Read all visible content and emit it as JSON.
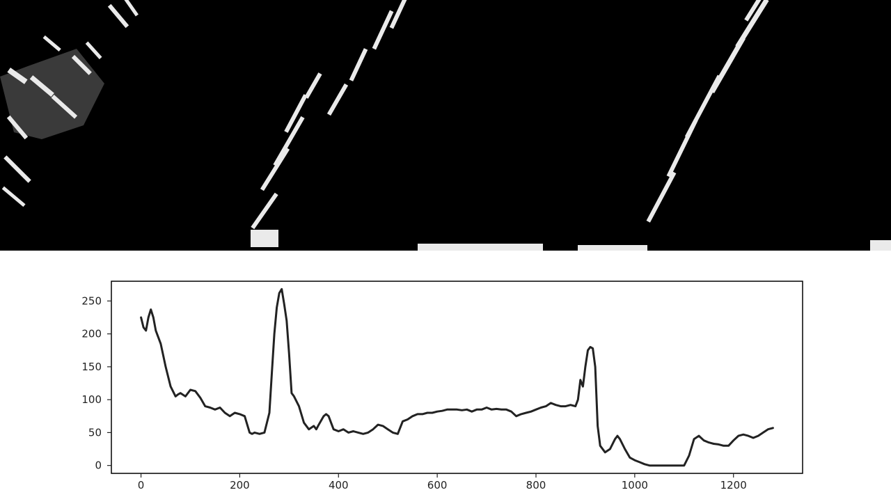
{
  "chart_data": {
    "type": "line",
    "title": "",
    "xlabel": "",
    "ylabel": "",
    "xlim": [
      -60,
      1340
    ],
    "ylim": [
      -12,
      280
    ],
    "xticks": [
      0,
      200,
      400,
      600,
      800,
      1000,
      1200
    ],
    "yticks": [
      0,
      50,
      100,
      150,
      200,
      250
    ],
    "grid": false,
    "legend": "none",
    "colors": {
      "line": "#222222",
      "frame": "#000000",
      "ticks": "#222222"
    },
    "series": [
      {
        "x": [
          0,
          5,
          10,
          15,
          20,
          25,
          30,
          40,
          50,
          60,
          70,
          75,
          80,
          90,
          100,
          110,
          120,
          130,
          140,
          150,
          160,
          170,
          180,
          190,
          200,
          210,
          220,
          225,
          230,
          240,
          250,
          260,
          265,
          270,
          275,
          280,
          285,
          290,
          295,
          300,
          305,
          310,
          320,
          330,
          340,
          350,
          355,
          360,
          370,
          375,
          380,
          385,
          390,
          400,
          410,
          420,
          430,
          440,
          450,
          460,
          470,
          480,
          490,
          500,
          510,
          520,
          530,
          540,
          550,
          560,
          570,
          580,
          590,
          600,
          610,
          620,
          630,
          640,
          650,
          660,
          670,
          680,
          690,
          700,
          710,
          720,
          730,
          740,
          750,
          760,
          770,
          780,
          790,
          800,
          810,
          820,
          830,
          840,
          850,
          860,
          870,
          880,
          885,
          890,
          895,
          900,
          905,
          910,
          915,
          920,
          925,
          930,
          940,
          950,
          960,
          965,
          970,
          980,
          990,
          1000,
          1010,
          1020,
          1030,
          1040,
          1050,
          1060,
          1070,
          1080,
          1090,
          1100,
          1110,
          1120,
          1130,
          1140,
          1150,
          1160,
          1170,
          1180,
          1190,
          1200,
          1210,
          1220,
          1230,
          1240,
          1250,
          1260,
          1270,
          1280
        ],
        "y": [
          225,
          210,
          205,
          225,
          237,
          225,
          205,
          185,
          150,
          120,
          105,
          108,
          110,
          105,
          115,
          113,
          103,
          90,
          88,
          85,
          88,
          80,
          75,
          80,
          78,
          75,
          50,
          48,
          50,
          48,
          50,
          80,
          140,
          200,
          240,
          262,
          268,
          245,
          220,
          170,
          110,
          105,
          90,
          65,
          55,
          60,
          55,
          62,
          75,
          78,
          75,
          65,
          55,
          52,
          55,
          50,
          52,
          50,
          48,
          50,
          55,
          62,
          60,
          55,
          50,
          48,
          67,
          70,
          75,
          78,
          78,
          80,
          80,
          82,
          83,
          85,
          85,
          85,
          84,
          85,
          82,
          85,
          85,
          88,
          85,
          86,
          85,
          85,
          82,
          75,
          78,
          80,
          82,
          85,
          88,
          90,
          95,
          92,
          90,
          90,
          92,
          90,
          100,
          130,
          120,
          150,
          175,
          180,
          178,
          150,
          60,
          30,
          20,
          25,
          40,
          45,
          40,
          25,
          12,
          8,
          5,
          2,
          0,
          0,
          0,
          0,
          0,
          0,
          0,
          0,
          15,
          40,
          45,
          38,
          35,
          33,
          32,
          30,
          30,
          38,
          45,
          47,
          45,
          42,
          45,
          50,
          55,
          57
        ]
      }
    ]
  }
}
